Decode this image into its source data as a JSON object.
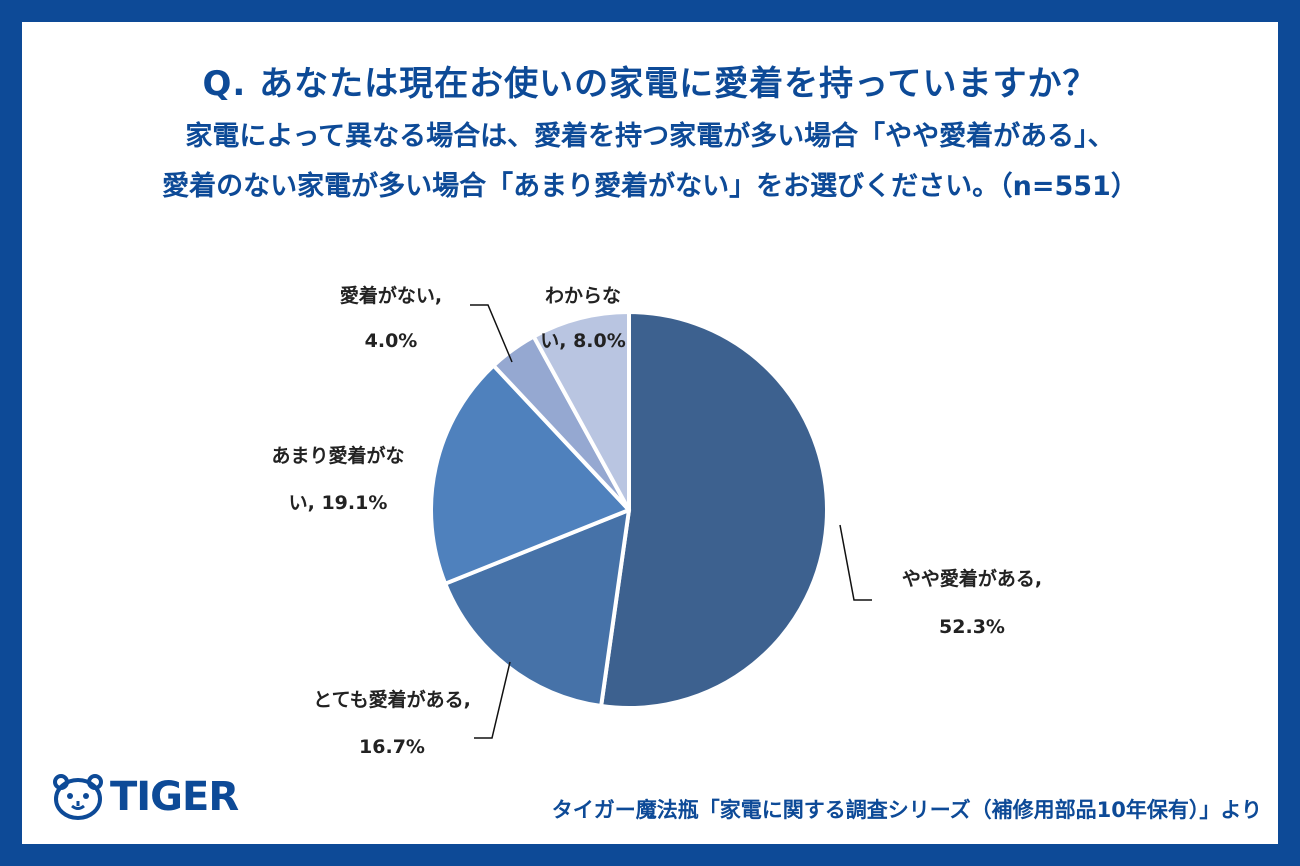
{
  "title": "Q. あなたは現在お使いの家電に愛着を持っていますか？",
  "subtitle_line1": "家電によって異なる場合は、愛着を持つ家電が多い場合「やや愛着がある」、",
  "subtitle_line2": "愛着のない家電が多い場合「あまり愛着がない」をお選びください。（n=551）",
  "logo": {
    "text": "TIGER",
    "icon": "tiger-face-icon"
  },
  "source": "タイガー魔法瓶「家電に関する調査シリーズ（補修用部品10年保有）」より",
  "colors": {
    "background": "#0d4a97",
    "slice1": "#3d618f",
    "slice2": "#4672a8",
    "slice3": "#4f81bd",
    "slice4": "#95a8d1",
    "slice5": "#b9c5e1"
  },
  "chart_data": {
    "type": "pie",
    "slices": [
      {
        "label_line1": "やや愛着がある,",
        "label_line2": "52.3%",
        "category": "やや愛着がある",
        "value": 52.3
      },
      {
        "label_line1": "とても愛着がある,",
        "label_line2": "16.7%",
        "category": "とても愛着がある",
        "value": 16.7
      },
      {
        "label_line1": "あまり愛着がな",
        "label_line2": "い, 19.1%",
        "category": "あまり愛着がない",
        "value": 19.1
      },
      {
        "label_line1": "愛着がない,",
        "label_line2": "4.0%",
        "category": "愛着がない",
        "value": 4.0
      },
      {
        "label_line1": "わからな",
        "label_line2": "い, 8.0%",
        "category": "わからない",
        "value": 8.0
      }
    ]
  }
}
